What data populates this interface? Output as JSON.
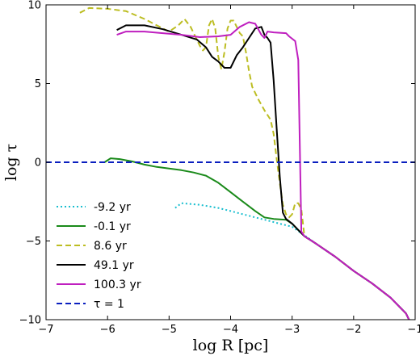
{
  "chart_data": {
    "type": "line",
    "xlabel": "log R [pc]",
    "ylabel": "log τ",
    "xlim": [
      -7,
      -1
    ],
    "ylim": [
      -10,
      10
    ],
    "xticks": [
      "−7",
      "−6",
      "−5",
      "−4",
      "−3",
      "−2",
      "−1"
    ],
    "yticks": [
      "−10",
      "−5",
      "0",
      "5",
      "10"
    ],
    "legend_position": "lower-left",
    "grid": false,
    "series": [
      {
        "name": "-9.2 yr",
        "color": "#17becf",
        "style": "dotted",
        "points": [
          [
            -4.9,
            -2.9
          ],
          [
            -4.8,
            -2.6
          ],
          [
            -4.5,
            -2.7
          ],
          [
            -4.2,
            -2.9
          ],
          [
            -4.0,
            -3.1
          ],
          [
            -3.8,
            -3.3
          ],
          [
            -3.6,
            -3.5
          ],
          [
            -3.4,
            -3.7
          ],
          [
            -3.2,
            -3.9
          ],
          [
            -3.0,
            -4.1
          ],
          [
            -2.85,
            -4.5
          ],
          [
            -2.6,
            -5.2
          ],
          [
            -2.3,
            -6.0
          ],
          [
            -2.0,
            -6.9
          ],
          [
            -1.7,
            -7.7
          ],
          [
            -1.4,
            -8.6
          ],
          [
            -1.15,
            -9.6
          ],
          [
            -1.1,
            -10.0
          ]
        ]
      },
      {
        "name": "-0.1 yr",
        "color": "#1a8a1a",
        "style": "solid",
        "points": [
          [
            -6.05,
            0.0
          ],
          [
            -5.95,
            0.25
          ],
          [
            -5.8,
            0.2
          ],
          [
            -5.6,
            0.05
          ],
          [
            -5.4,
            -0.15
          ],
          [
            -5.2,
            -0.3
          ],
          [
            -5.0,
            -0.4
          ],
          [
            -4.8,
            -0.5
          ],
          [
            -4.6,
            -0.65
          ],
          [
            -4.4,
            -0.85
          ],
          [
            -4.2,
            -1.3
          ],
          [
            -4.0,
            -1.9
          ],
          [
            -3.8,
            -2.5
          ],
          [
            -3.6,
            -3.1
          ],
          [
            -3.45,
            -3.5
          ],
          [
            -3.3,
            -3.6
          ],
          [
            -3.1,
            -3.65
          ],
          [
            -3.0,
            -3.9
          ],
          [
            -2.9,
            -4.3
          ],
          [
            -2.8,
            -4.7
          ],
          [
            -2.6,
            -5.2
          ],
          [
            -2.3,
            -6.0
          ],
          [
            -2.0,
            -6.9
          ],
          [
            -1.7,
            -7.7
          ],
          [
            -1.4,
            -8.6
          ],
          [
            -1.15,
            -9.6
          ],
          [
            -1.1,
            -10.0
          ]
        ]
      },
      {
        "name": "8.6 yr",
        "color": "#bcbd22",
        "style": "dashed",
        "points": [
          [
            -6.45,
            9.5
          ],
          [
            -6.3,
            9.8
          ],
          [
            -6.0,
            9.75
          ],
          [
            -5.7,
            9.6
          ],
          [
            -5.4,
            9.1
          ],
          [
            -5.2,
            8.7
          ],
          [
            -5.0,
            8.3
          ],
          [
            -4.85,
            8.7
          ],
          [
            -4.75,
            9.1
          ],
          [
            -4.65,
            8.6
          ],
          [
            -4.55,
            7.8
          ],
          [
            -4.5,
            7.4
          ],
          [
            -4.45,
            7.1
          ],
          [
            -4.4,
            7.3
          ],
          [
            -4.35,
            8.7
          ],
          [
            -4.3,
            9.1
          ],
          [
            -4.25,
            8.5
          ],
          [
            -4.2,
            6.7
          ],
          [
            -4.15,
            5.9
          ],
          [
            -4.1,
            7.0
          ],
          [
            -4.05,
            8.5
          ],
          [
            -4.0,
            9.0
          ],
          [
            -3.95,
            9.0
          ],
          [
            -3.9,
            8.6
          ],
          [
            -3.85,
            8.2
          ],
          [
            -3.8,
            8.0
          ],
          [
            -3.75,
            7.0
          ],
          [
            -3.7,
            5.8
          ],
          [
            -3.65,
            4.8
          ],
          [
            -3.55,
            4.0
          ],
          [
            -3.45,
            3.3
          ],
          [
            -3.35,
            2.7
          ],
          [
            -3.3,
            1.8
          ],
          [
            -3.25,
            0.2
          ],
          [
            -3.2,
            -1.3
          ],
          [
            -3.15,
            -2.7
          ],
          [
            -3.1,
            -3.3
          ],
          [
            -3.05,
            -3.5
          ],
          [
            -3.0,
            -3.3
          ],
          [
            -2.95,
            -2.6
          ],
          [
            -2.9,
            -2.6
          ],
          [
            -2.85,
            -3.0
          ],
          [
            -2.8,
            -4.7
          ],
          [
            -2.6,
            -5.2
          ],
          [
            -2.3,
            -6.0
          ],
          [
            -2.0,
            -6.9
          ],
          [
            -1.7,
            -7.7
          ],
          [
            -1.4,
            -8.6
          ],
          [
            -1.15,
            -9.6
          ],
          [
            -1.1,
            -10.0
          ]
        ]
      },
      {
        "name": "49.1 yr",
        "color": "#000000",
        "style": "solid",
        "points": [
          [
            -5.85,
            8.4
          ],
          [
            -5.7,
            8.7
          ],
          [
            -5.4,
            8.7
          ],
          [
            -5.1,
            8.45
          ],
          [
            -4.8,
            8.1
          ],
          [
            -4.55,
            7.8
          ],
          [
            -4.4,
            7.3
          ],
          [
            -4.3,
            6.7
          ],
          [
            -4.2,
            6.4
          ],
          [
            -4.1,
            6.0
          ],
          [
            -4.0,
            6.0
          ],
          [
            -3.9,
            6.8
          ],
          [
            -3.8,
            7.3
          ],
          [
            -3.7,
            7.9
          ],
          [
            -3.6,
            8.5
          ],
          [
            -3.5,
            8.6
          ],
          [
            -3.45,
            8.1
          ],
          [
            -3.4,
            7.9
          ],
          [
            -3.35,
            7.6
          ],
          [
            -3.3,
            5.2
          ],
          [
            -3.25,
            2.1
          ],
          [
            -3.2,
            -0.9
          ],
          [
            -3.15,
            -3.2
          ],
          [
            -3.1,
            -3.6
          ],
          [
            -3.0,
            -3.9
          ],
          [
            -2.9,
            -4.3
          ],
          [
            -2.8,
            -4.7
          ],
          [
            -2.6,
            -5.2
          ],
          [
            -2.3,
            -6.0
          ],
          [
            -2.0,
            -6.9
          ],
          [
            -1.7,
            -7.7
          ],
          [
            -1.4,
            -8.6
          ],
          [
            -1.15,
            -9.6
          ],
          [
            -1.1,
            -10.0
          ]
        ]
      },
      {
        "name": "100.3 yr",
        "color": "#bf1fbf",
        "style": "solid",
        "points": [
          [
            -5.85,
            8.1
          ],
          [
            -5.7,
            8.3
          ],
          [
            -5.4,
            8.3
          ],
          [
            -5.1,
            8.2
          ],
          [
            -4.8,
            8.1
          ],
          [
            -4.5,
            7.95
          ],
          [
            -4.2,
            8.0
          ],
          [
            -4.0,
            8.1
          ],
          [
            -3.85,
            8.6
          ],
          [
            -3.7,
            8.9
          ],
          [
            -3.6,
            8.8
          ],
          [
            -3.5,
            8.1
          ],
          [
            -3.45,
            7.9
          ],
          [
            -3.4,
            8.3
          ],
          [
            -3.3,
            8.25
          ],
          [
            -3.1,
            8.2
          ],
          [
            -3.05,
            8.0
          ],
          [
            -2.95,
            7.7
          ],
          [
            -2.9,
            6.5
          ],
          [
            -2.85,
            -4.4
          ],
          [
            -2.8,
            -4.7
          ],
          [
            -2.6,
            -5.2
          ],
          [
            -2.3,
            -6.0
          ],
          [
            -2.0,
            -6.9
          ],
          [
            -1.7,
            -7.7
          ],
          [
            -1.4,
            -8.6
          ],
          [
            -1.15,
            -9.6
          ],
          [
            -1.1,
            -10.0
          ]
        ]
      },
      {
        "name": "τ = 1",
        "color": "#0a1fbf",
        "style": "dashed",
        "points": [
          [
            -7,
            0
          ],
          [
            -1,
            0
          ]
        ]
      }
    ]
  }
}
